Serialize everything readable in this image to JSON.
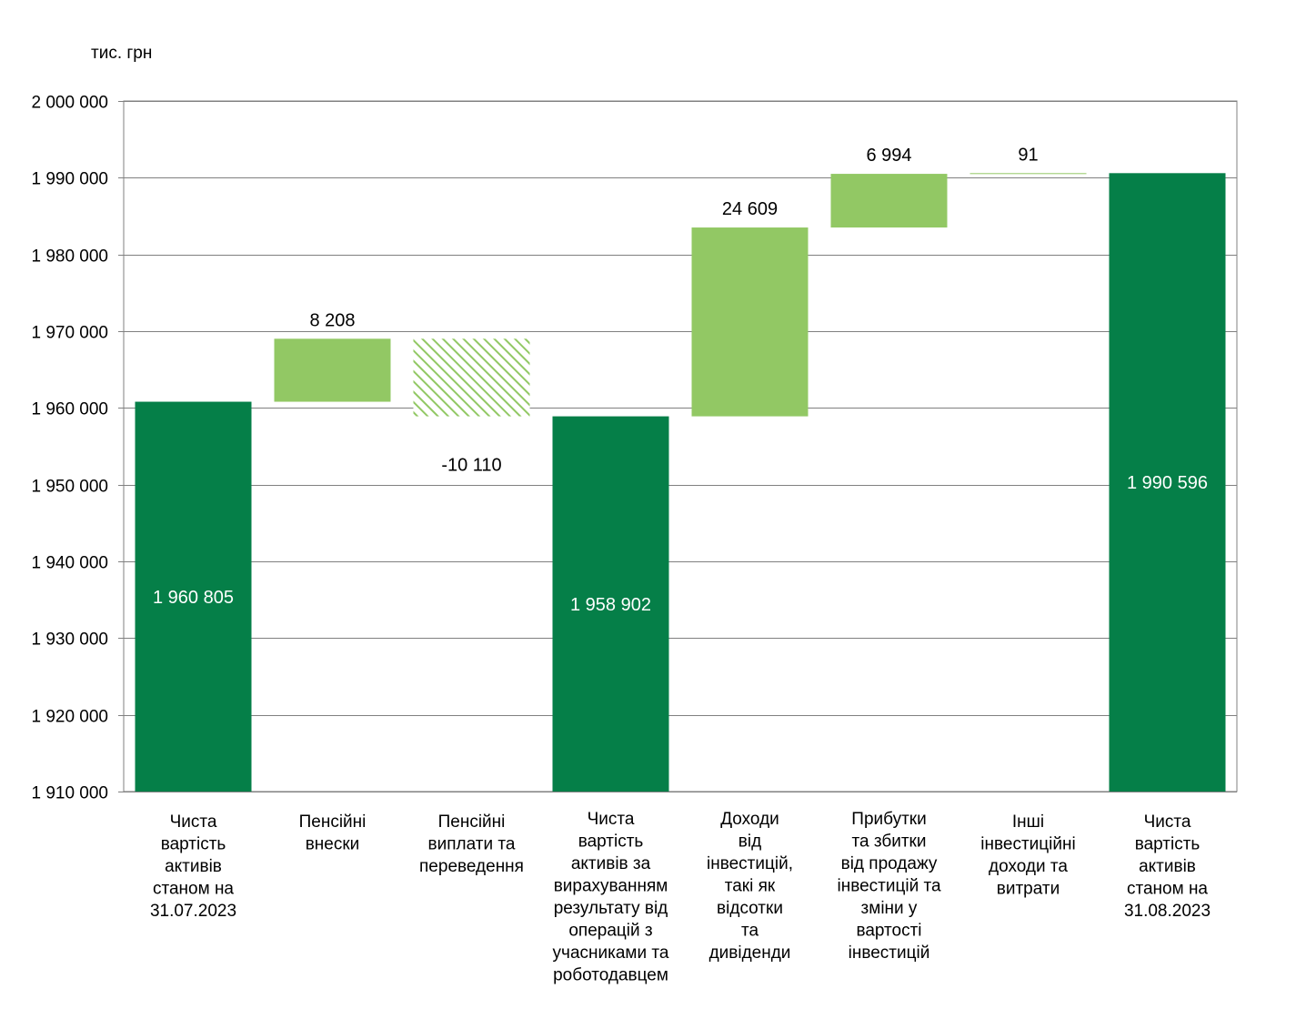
{
  "chart_data": {
    "type": "bar",
    "subtype": "waterfall",
    "unit_label": "тис. грн",
    "ylim": [
      1910000,
      2000000
    ],
    "ytick_step": 10000,
    "grid": true,
    "categories": [
      [
        "Чиста",
        "вартість",
        "активів",
        "станом на",
        "31.07.2023"
      ],
      [
        "Пенсійні",
        "внески"
      ],
      [
        "Пенсійні",
        "виплати  та",
        "переведення"
      ],
      [
        "Чиста",
        "вартість",
        "активів за",
        "вирахуванням",
        "результату від",
        "операцій  з",
        "учасниками  та",
        "роботодавцем"
      ],
      [
        "Доходи",
        "від",
        "інвестицій,",
        "такі як",
        "відсотки",
        "та",
        "дивіденди"
      ],
      [
        "Прибутки",
        "та збитки",
        "від продажу",
        "інвестицій та",
        "зміни  у",
        "вартості",
        "інвестицій"
      ],
      [
        "Інші",
        "інвестиційні",
        "доходи та",
        "витрати"
      ],
      [
        "Чиста",
        "вартість",
        "активів",
        "станом на",
        "31.08.2023"
      ]
    ],
    "bars": [
      {
        "kind": "total",
        "start": 1910000,
        "end": 1960805,
        "label": "1 960 805"
      },
      {
        "kind": "increase",
        "start": 1960805,
        "end": 1969013,
        "label": "8 208"
      },
      {
        "kind": "decrease",
        "start": 1969013,
        "end": 1958903,
        "label": "-10 110"
      },
      {
        "kind": "total",
        "start": 1910000,
        "end": 1958902,
        "label": "1 958 902"
      },
      {
        "kind": "increase",
        "start": 1958902,
        "end": 1983511,
        "label": "24 609"
      },
      {
        "kind": "increase",
        "start": 1983511,
        "end": 1990505,
        "label": "6 994"
      },
      {
        "kind": "increase",
        "start": 1990505,
        "end": 1990596,
        "label": "91"
      },
      {
        "kind": "total",
        "start": 1910000,
        "end": 1990596,
        "label": "1 990 596"
      }
    ],
    "colors": {
      "total": "#057f48",
      "increase": "#92c864",
      "decrease_hatch": "#92c864",
      "grid": "#808080"
    }
  }
}
